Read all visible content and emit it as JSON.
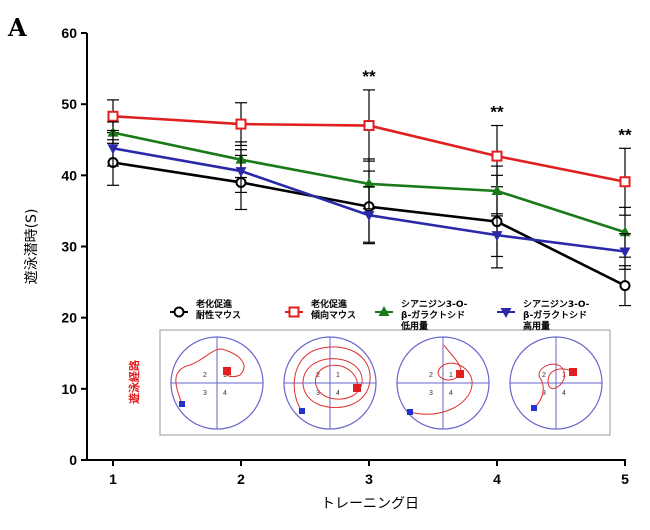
{
  "panel_letter": "A",
  "chart_data": {
    "type": "line",
    "title": "",
    "xlabel": "トレーニング日",
    "ylabel": "遊泳潜時(S)",
    "x": [
      1,
      2,
      3,
      4,
      5
    ],
    "xlim": [
      1,
      5
    ],
    "ylim": [
      0,
      60
    ],
    "yticks": [
      0,
      10,
      20,
      30,
      40,
      50,
      60
    ],
    "series": [
      {
        "name": "老化促進 耐性マウス",
        "name_lines": [
          "老化促進",
          "耐性マウス"
        ],
        "color": "#000000",
        "marker": "circle-open",
        "values": [
          41.8,
          39.0,
          35.6,
          33.5,
          24.5
        ],
        "errors": [
          3.2,
          3.8,
          5.0,
          6.5,
          2.8
        ]
      },
      {
        "name": "老化促進 傾向マウス",
        "name_lines": [
          "老化促進",
          "傾向マウス"
        ],
        "color": "#e02020",
        "marker": "square-open",
        "values": [
          48.3,
          47.2,
          47.0,
          42.7,
          39.1
        ],
        "errors": [
          2.3,
          3.0,
          5.0,
          4.3,
          4.7
        ]
      },
      {
        "name": "シアニジン3-O-β-ガラクトシド 低用量",
        "name_lines": [
          "シアニジン3-O-",
          "β-ガラクトシド",
          "低用量"
        ],
        "color": "#1a7a1a",
        "marker": "triangle-up",
        "values": [
          46.0,
          42.2,
          38.8,
          37.8,
          32.0
        ],
        "errors": [
          1.5,
          2.5,
          3.5,
          3.5,
          3.5
        ]
      },
      {
        "name": "シアニジン3-O-β-ガラクトシド 高用量",
        "name_lines": [
          "シアニジン3-O-",
          "β-ガラクトシド",
          "高用量"
        ],
        "color": "#2a2aa8",
        "marker": "triangle-down",
        "values": [
          43.8,
          40.6,
          34.4,
          31.6,
          29.3
        ],
        "errors": [
          2.5,
          3.0,
          4.0,
          3.0,
          2.5
        ]
      }
    ],
    "significance": [
      {
        "x": 3,
        "label": "**"
      },
      {
        "x": 4,
        "label": "**"
      },
      {
        "x": 5,
        "label": "**"
      }
    ],
    "inset": {
      "title": "遊泳経路",
      "quadrant_labels": [
        "1",
        "2",
        "3",
        "4"
      ],
      "path_color": "#e03030",
      "platform_color": "#e02020",
      "start_color": "#2233cc",
      "axis_color": "#6666cc"
    }
  }
}
